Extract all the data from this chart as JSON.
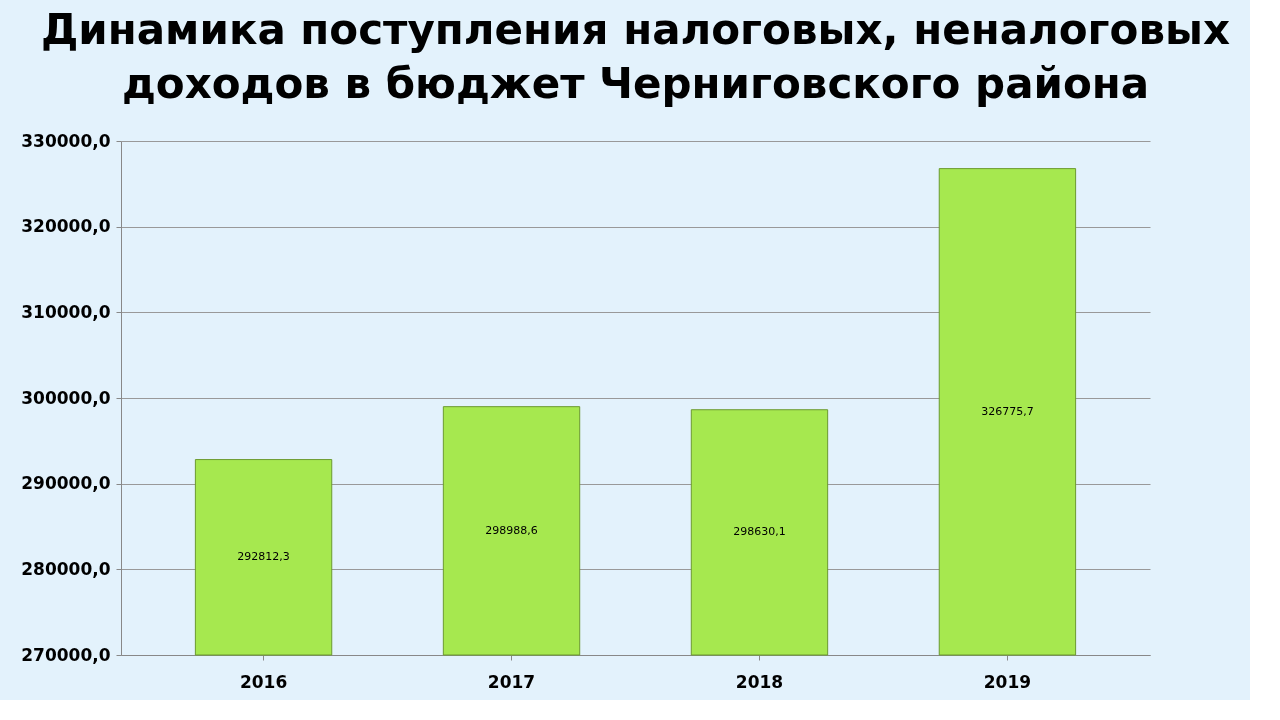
{
  "chart_data": {
    "type": "bar",
    "title": "Динамика поступления налоговых, неналоговых доходов в бюджет Черниговского района",
    "categories": [
      "2016",
      "2017",
      "2018",
      "2019"
    ],
    "values": [
      292812.3,
      298988.6,
      298630.1,
      326775.7
    ],
    "value_labels": [
      "292812,3",
      "298988,6",
      "298630,1",
      "326775,7"
    ],
    "color": "#a6e84f",
    "ylim": [
      270000,
      330000
    ],
    "yticks": [
      {
        "value": 270000,
        "label": "270000,0"
      },
      {
        "value": 280000,
        "label": "280000,0"
      },
      {
        "value": 290000,
        "label": "290000,0"
      },
      {
        "value": 300000,
        "label": "300000,0"
      },
      {
        "value": 310000,
        "label": "310000,0"
      },
      {
        "value": 320000,
        "label": "320000,0"
      },
      {
        "value": 330000,
        "label": "330000,0"
      }
    ],
    "grid": "y"
  }
}
